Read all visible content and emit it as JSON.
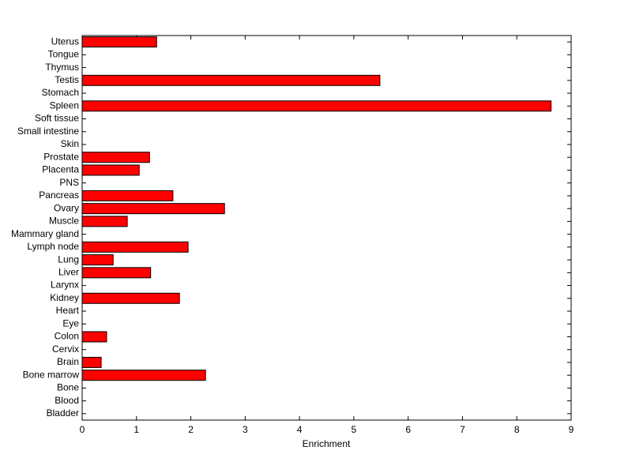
{
  "chart_data": {
    "type": "barh",
    "xlabel": "Enrichment",
    "categories": [
      "Uterus",
      "Tongue",
      "Thymus",
      "Testis",
      "Stomach",
      "Spleen",
      "Soft tissue",
      "Small intestine",
      "Skin",
      "Prostate",
      "Placenta",
      "PNS",
      "Pancreas",
      "Ovary",
      "Muscle",
      "Mammary gland",
      "Lymph node",
      "Lung",
      "Liver",
      "Larynx",
      "Kidney",
      "Heart",
      "Eye",
      "Colon",
      "Cervix",
      "Brain",
      "Bone marrow",
      "Bone",
      "Blood",
      "Bladder"
    ],
    "values": [
      1.37,
      0,
      0,
      5.48,
      0,
      8.63,
      0,
      0,
      0,
      1.24,
      1.05,
      0,
      1.67,
      2.62,
      0.83,
      0,
      1.95,
      0.57,
      1.26,
      0,
      1.79,
      0,
      0,
      0.45,
      0,
      0.35,
      2.27,
      0,
      0,
      0
    ],
    "color": "#ff0000",
    "xlim": [
      0,
      9
    ],
    "xticks": [
      0,
      1,
      2,
      3,
      4,
      5,
      6,
      7,
      8,
      9
    ]
  }
}
